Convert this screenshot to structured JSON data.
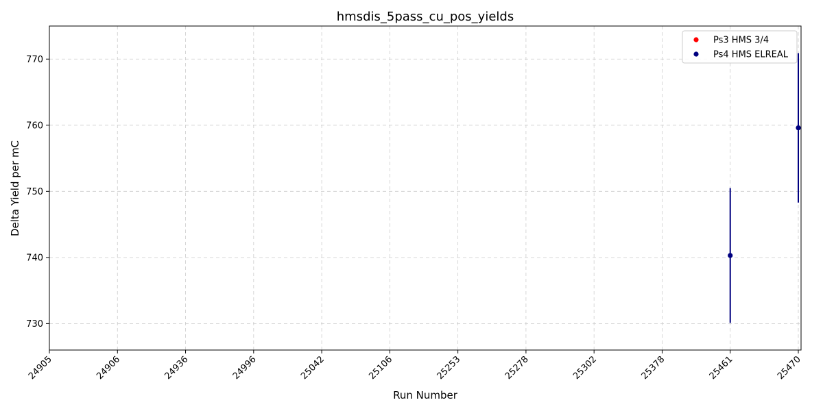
{
  "chart_data": {
    "type": "scatter",
    "title": "hmsdis_5pass_cu_pos_yields",
    "xlabel": "Run Number",
    "ylabel": "Delta Yield per mC",
    "x_categories": [
      "24905",
      "24906",
      "24936",
      "24996",
      "25042",
      "25106",
      "25253",
      "25278",
      "25302",
      "25378",
      "25461",
      "25470"
    ],
    "ylim": [
      726,
      775
    ],
    "yticks": [
      730,
      740,
      750,
      760,
      770
    ],
    "grid": true,
    "legend_position": "top-right",
    "series": [
      {
        "name": "Ps3 HMS 3/4",
        "color": "#ff0000",
        "points": []
      },
      {
        "name": "Ps4 HMS ELREAL",
        "color": "#000080",
        "points": [
          {
            "x": "25461",
            "y": 740.3,
            "yerr_low": 730.1,
            "yerr_high": 750.5
          },
          {
            "x": "25470",
            "y": 759.6,
            "yerr_low": 748.3,
            "yerr_high": 770.9
          }
        ]
      }
    ]
  }
}
